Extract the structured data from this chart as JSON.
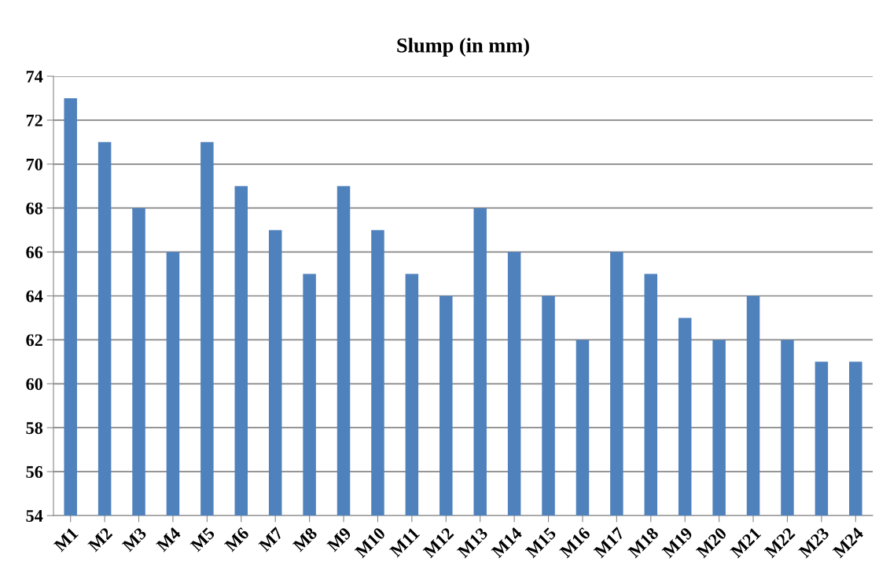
{
  "chart_data": {
    "type": "bar",
    "title": "Slump (in mm)",
    "categories": [
      "M1",
      "M2",
      "M3",
      "M4",
      "M5",
      "M6",
      "M7",
      "M8",
      "M9",
      "M10",
      "M11",
      "M12",
      "M13",
      "M14",
      "M15",
      "M16",
      "M17",
      "M18",
      "M19",
      "M20",
      "M21",
      "M22",
      "M23",
      "M24"
    ],
    "values": [
      73,
      71,
      68,
      66,
      71,
      69,
      67,
      65,
      69,
      67,
      65,
      64,
      68,
      66,
      64,
      62,
      66,
      65,
      63,
      62,
      64,
      62,
      61,
      61
    ],
    "color": "#4f81bd",
    "ylim": [
      54,
      74
    ],
    "yticks": [
      54,
      56,
      58,
      60,
      62,
      64,
      66,
      68,
      70,
      72,
      74
    ],
    "grid": "y",
    "legend": false
  }
}
